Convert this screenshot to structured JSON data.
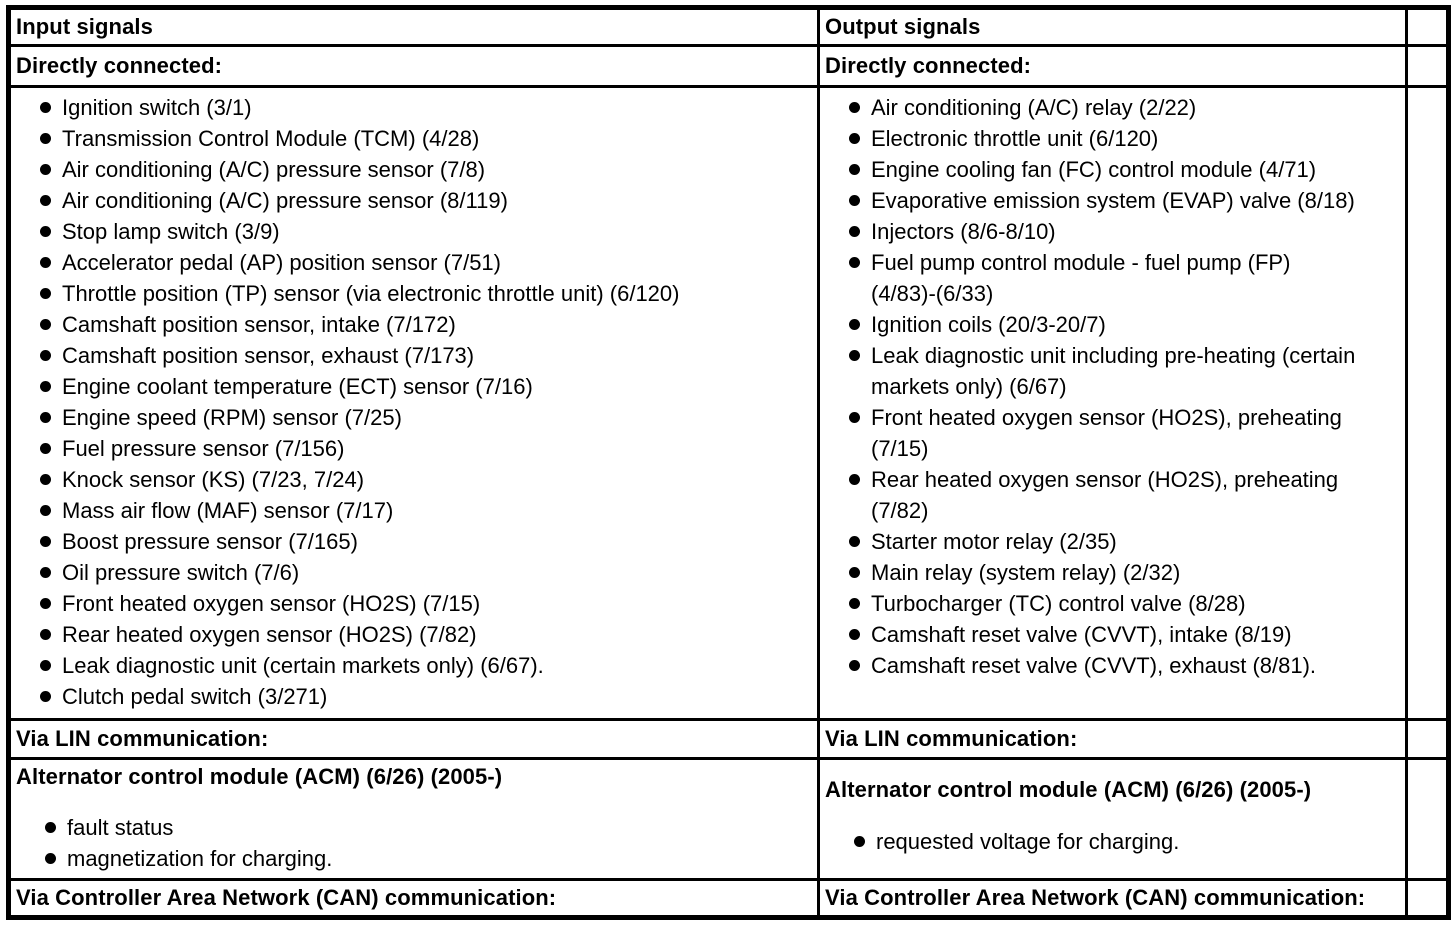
{
  "colors": {
    "border": "#000000",
    "background": "#ffffff",
    "text": "#000000"
  },
  "table": {
    "input": {
      "header": "Input signals",
      "directly_connected": {
        "label": "Directly connected:",
        "items": [
          "Ignition switch (3/1)",
          "Transmission Control Module (TCM) (4/28)",
          "Air conditioning (A/C) pressure sensor (7/8)",
          "Air conditioning (A/C) pressure sensor (8/119)",
          "Stop lamp switch (3/9)",
          "Accelerator pedal (AP) position sensor (7/51)",
          "Throttle position (TP) sensor (via electronic throttle unit) (6/120)",
          "Camshaft position sensor, intake (7/172)",
          "Camshaft position sensor, exhaust (7/173)",
          "Engine coolant temperature (ECT) sensor (7/16)",
          "Engine speed (RPM) sensor (7/25)",
          "Fuel pressure sensor (7/156)",
          "Knock sensor (KS) (7/23, 7/24)",
          "Mass air flow (MAF) sensor (7/17)",
          "Boost pressure sensor (7/165)",
          "Oil pressure switch (7/6)",
          "Front heated oxygen sensor (HO2S) (7/15)",
          "Rear heated oxygen sensor (HO2S) (7/82)",
          "Leak diagnostic unit (certain markets only) (6/67).",
          "Clutch pedal switch (3/271)"
        ]
      },
      "via_lin": {
        "label": "Via LIN communication:",
        "module_title": "Alternator control module (ACM) (6/26) (2005-)",
        "items": [
          "fault status",
          "magnetization for charging."
        ]
      },
      "via_can": {
        "label": "Via Controller Area Network (CAN) communication:"
      }
    },
    "output": {
      "header": "Output signals",
      "directly_connected": {
        "label": "Directly connected:",
        "items": [
          "Air conditioning (A/C) relay (2/22)",
          "Electronic throttle unit (6/120)",
          "Engine cooling fan (FC) control module (4/71)",
          "Evaporative emission system (EVAP) valve (8/18)",
          "Injectors (8/6-8/10)",
          "Fuel pump control module - fuel pump (FP)\n(4/83)-(6/33)",
          "Ignition coils (20/3-20/7)",
          "Leak diagnostic unit including pre-heating (certain\nmarkets only) (6/67)",
          "Front heated oxygen sensor (HO2S), preheating\n(7/15)",
          "Rear heated oxygen sensor (HO2S), preheating\n(7/82)",
          "Starter motor relay (2/35)",
          "Main relay (system relay) (2/32)",
          "Turbocharger (TC) control valve (8/28)",
          "Camshaft reset valve (CVVT), intake (8/19)",
          "Camshaft reset valve (CVVT), exhaust (8/81)."
        ]
      },
      "via_lin": {
        "label": "Via LIN communication:",
        "module_title": "Alternator control module (ACM) (6/26) (2005-)",
        "items": [
          "requested voltage for charging."
        ]
      },
      "via_can": {
        "label": "Via Controller Area Network (CAN) communication:"
      }
    }
  }
}
